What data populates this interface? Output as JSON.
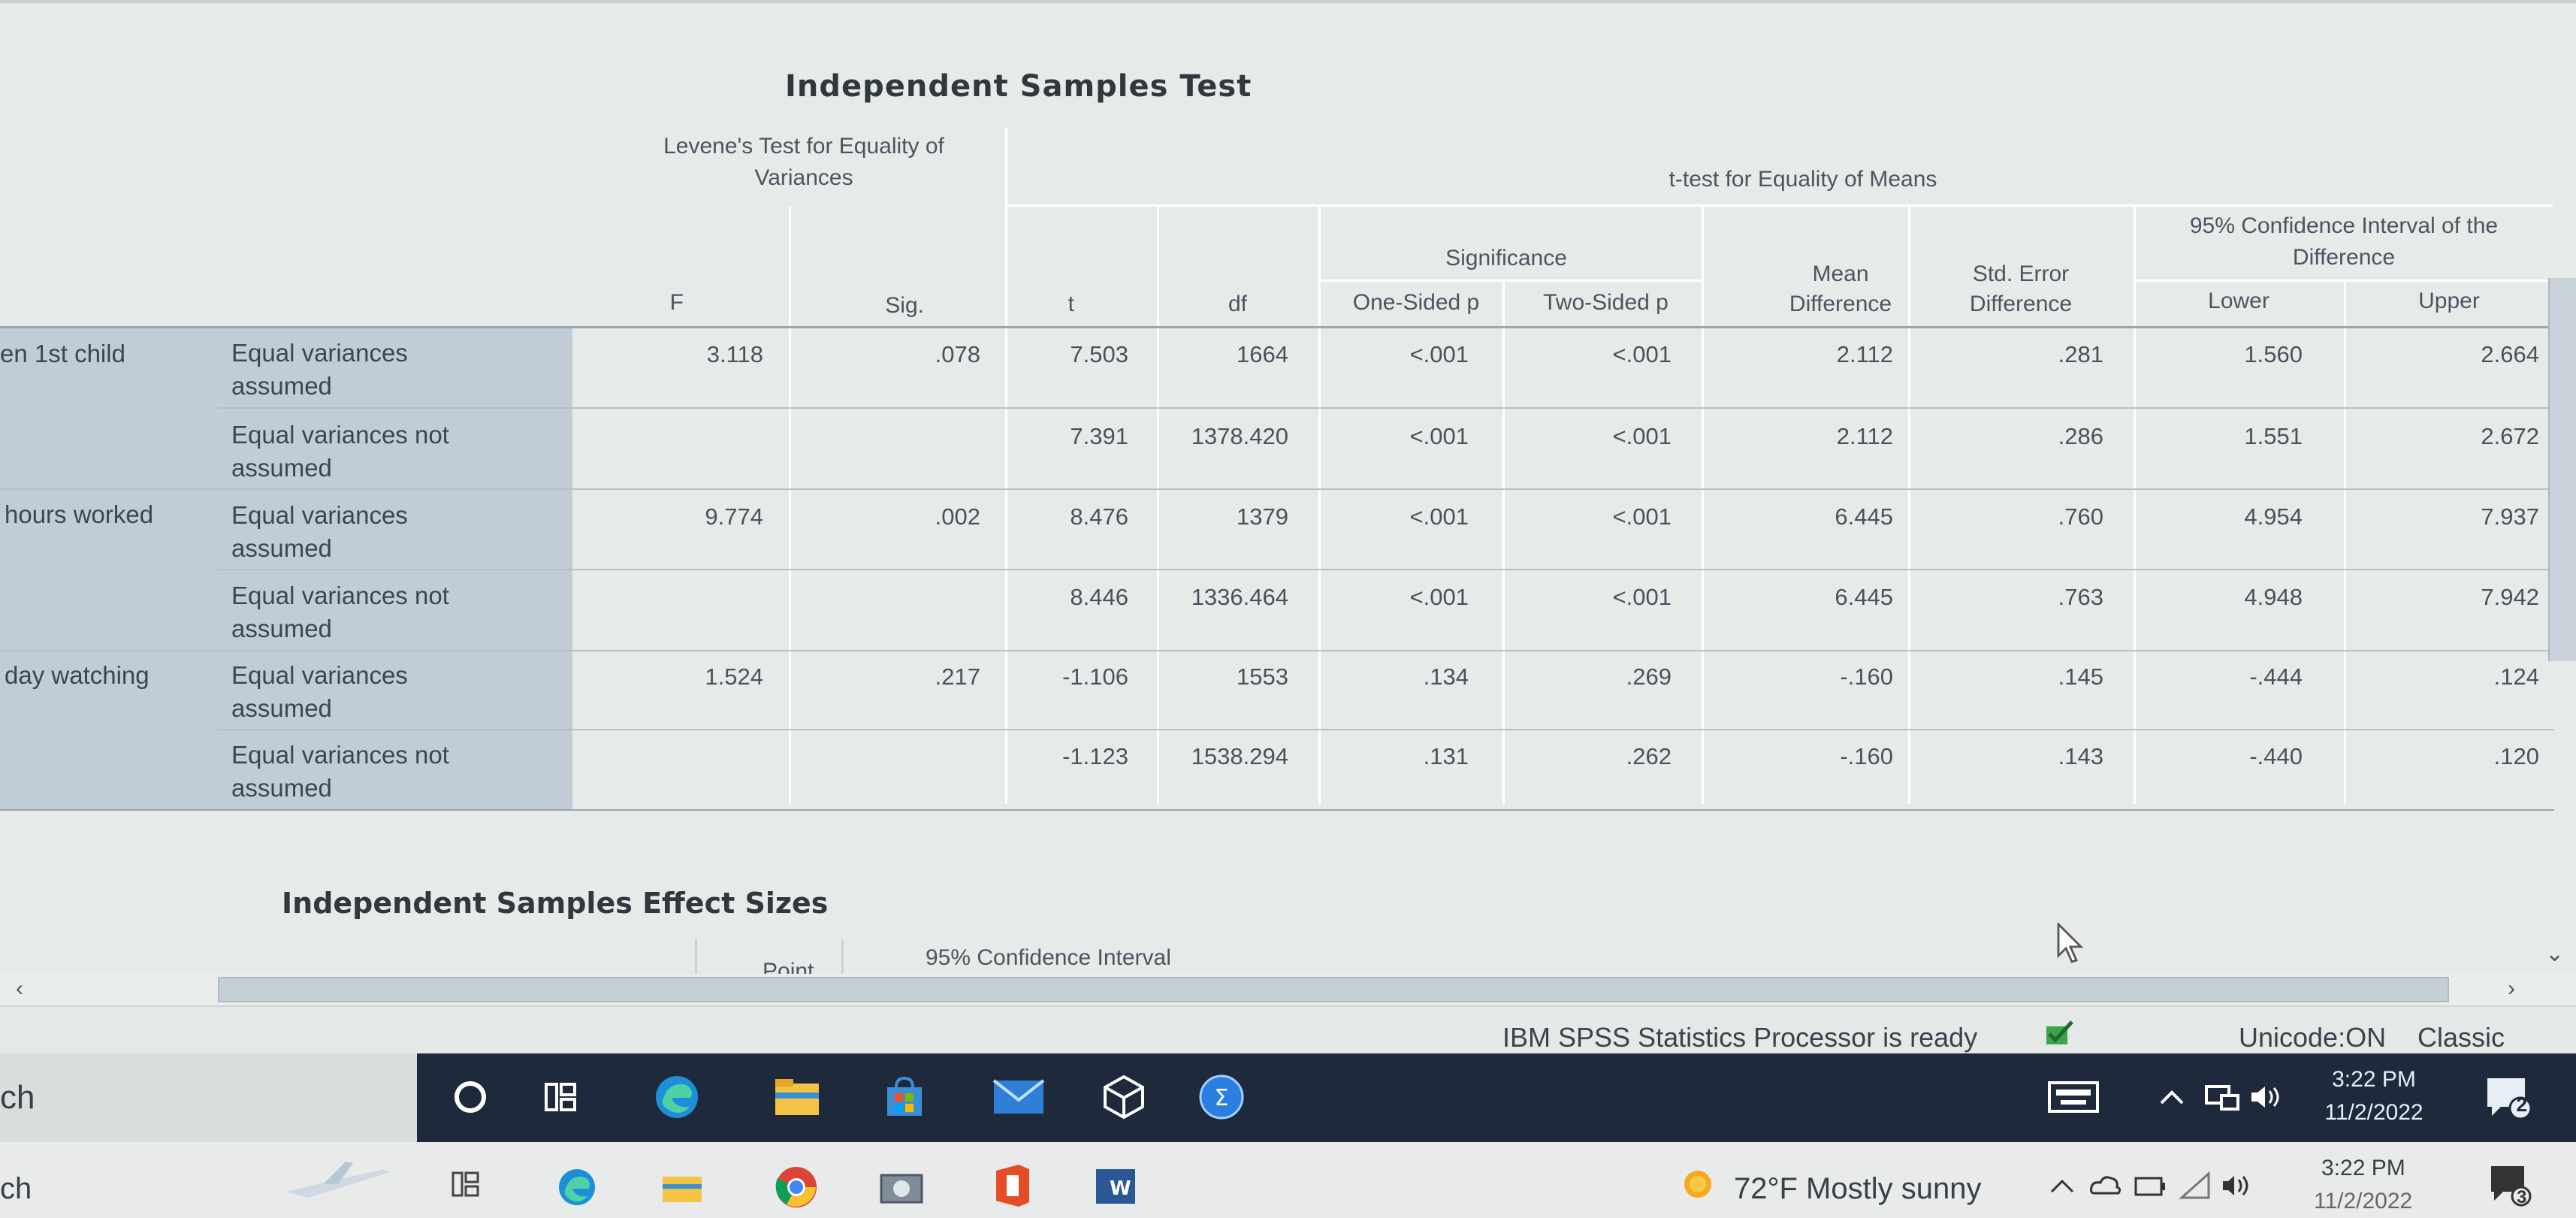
{
  "table": {
    "title": "Independent Samples Test",
    "levene_header": [
      "Levene's Test for Equality of",
      "Variances"
    ],
    "ttest_header": "t-test for Equality of Means",
    "significance_header": "Significance",
    "ci_header": [
      "95% Confidence Interval of the",
      "Difference"
    ],
    "mean_diff_header": [
      "Mean",
      "Difference"
    ],
    "se_diff_header": [
      "Std. Error",
      "Difference"
    ],
    "columns": {
      "f": "F",
      "sig": "Sig.",
      "t": "t",
      "df": "df",
      "one_sided": "One-Sided p",
      "two_sided": "Two-Sided p",
      "lower": "Lower",
      "upper": "Upper"
    },
    "groups": [
      {
        "label": "en 1st child",
        "rows": [
          {
            "label": [
              "Equal variances",
              "assumed"
            ],
            "f": "3.118",
            "sig": ".078",
            "t": "7.503",
            "df": "1664",
            "one": "<.001",
            "two": "<.001",
            "md": "2.112",
            "se": ".281",
            "lo": "1.560",
            "up": "2.664"
          },
          {
            "label": [
              "Equal variances not",
              "assumed"
            ],
            "f": "",
            "sig": "",
            "t": "7.391",
            "df": "1378.420",
            "one": "<.001",
            "two": "<.001",
            "md": "2.112",
            "se": ".286",
            "lo": "1.551",
            "up": "2.672"
          }
        ]
      },
      {
        "label": "hours worked",
        "rows": [
          {
            "label": [
              "Equal variances",
              "assumed"
            ],
            "f": "9.774",
            "sig": ".002",
            "t": "8.476",
            "df": "1379",
            "one": "<.001",
            "two": "<.001",
            "md": "6.445",
            "se": ".760",
            "lo": "4.954",
            "up": "7.937"
          },
          {
            "label": [
              "Equal variances not",
              "assumed"
            ],
            "f": "",
            "sig": "",
            "t": "8.446",
            "df": "1336.464",
            "one": "<.001",
            "two": "<.001",
            "md": "6.445",
            "se": ".763",
            "lo": "4.948",
            "up": "7.942"
          }
        ]
      },
      {
        "label": "day watching",
        "rows": [
          {
            "label": [
              "Equal variances",
              "assumed"
            ],
            "f": "1.524",
            "sig": ".217",
            "t": "-1.106",
            "df": "1553",
            "one": ".134",
            "two": ".269",
            "md": "-.160",
            "se": ".145",
            "lo": "-.444",
            "up": ".124"
          },
          {
            "label": [
              "Equal variances not",
              "assumed"
            ],
            "f": "",
            "sig": "",
            "t": "-1.123",
            "df": "1538.294",
            "one": ".131",
            "two": ".262",
            "md": "-.160",
            "se": ".143",
            "lo": "-.440",
            "up": ".120"
          }
        ]
      }
    ]
  },
  "effect": {
    "title": "Independent Samples Effect Sizes",
    "point": "Point",
    "ci": "95% Confidence Interval"
  },
  "statusbar": {
    "processor": "IBM SPSS Statistics Processor is ready",
    "unicode": "Unicode:ON",
    "mode": "Classic"
  },
  "taskbar": {
    "search_fragment": "ch",
    "time": "3:22 PM",
    "date": "11/2/2022",
    "notif_count": "2",
    "apps": [
      "cortana-icon",
      "task-view-icon",
      "edge-icon",
      "file-explorer-icon",
      "store-icon",
      "mail-icon",
      "3d-viewer-icon",
      "spss-icon"
    ]
  },
  "taskbar2": {
    "search_fragment": "ch",
    "weather": "72°F  Mostly sunny",
    "time": "3:22 PM",
    "date": "11/2/2022",
    "notif_count": "3"
  },
  "colors": {
    "viewer_bg": "#e6ebea",
    "row_header": "#c2ccd6",
    "taskbar": "#1e2a3c"
  }
}
